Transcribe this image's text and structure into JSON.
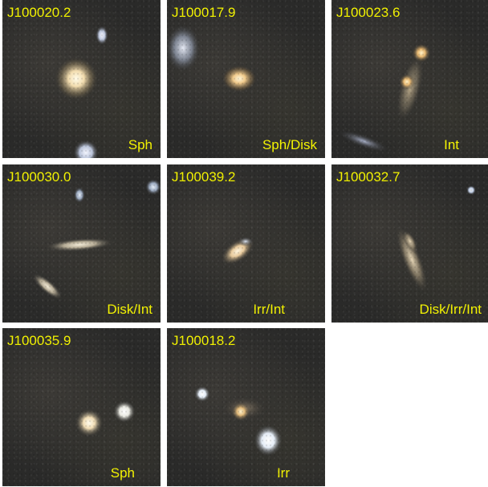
{
  "panels": [
    {
      "id": "J100020.2",
      "type": "Sph"
    },
    {
      "id": "J100017.9",
      "type": "Sph/Disk"
    },
    {
      "id": "J100023.6",
      "type": "Int"
    },
    {
      "id": "J100030.0",
      "type": "Disk/Int"
    },
    {
      "id": "J100039.2",
      "type": "Irr/Int"
    },
    {
      "id": "J100032.7",
      "type": "Disk/Irr/Int"
    },
    {
      "id": "J100035.9",
      "type": "Sph"
    },
    {
      "id": "J100018.2",
      "type": "Irr"
    }
  ]
}
